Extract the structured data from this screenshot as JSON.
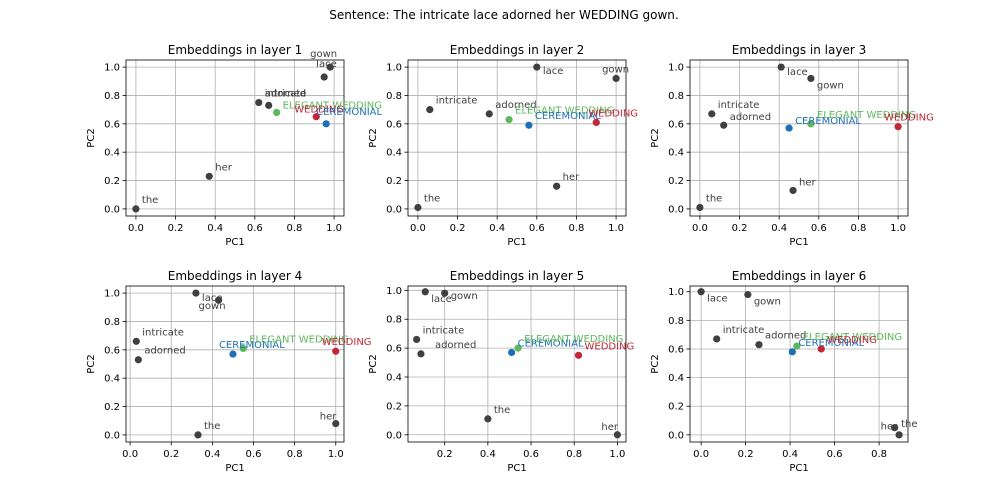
{
  "figure": {
    "title": "Sentence: The intricate lace adorned her WEDDING gown."
  },
  "legend_colors": {
    "word": "#404040",
    "elegant_wedding": "#5cb85c",
    "ceremonial": "#1f6fb5",
    "wedding": "#c0283a"
  },
  "chart_data": [
    {
      "type": "scatter",
      "title": "Embeddings in layer 1",
      "xlabel": "PC1",
      "ylabel": "PC2",
      "xlim": [
        -0.05,
        1.05
      ],
      "ylim": [
        -0.05,
        1.05
      ],
      "xticks": [
        "0.0",
        "0.2",
        "0.4",
        "0.6",
        "0.8",
        "1.0"
      ],
      "yticks": [
        "0.0",
        "0.2",
        "0.4",
        "0.6",
        "0.8",
        "1.0"
      ],
      "grid": true,
      "points": [
        {
          "label": "the",
          "x": 0.0,
          "y": 0.0,
          "color": "#404040"
        },
        {
          "label": "her",
          "x": 0.37,
          "y": 0.23,
          "color": "#404040"
        },
        {
          "label": "intricate",
          "x": 0.62,
          "y": 0.75,
          "color": "#404040"
        },
        {
          "label": "adorned",
          "x": 0.67,
          "y": 0.73,
          "color": "#404040"
        },
        {
          "label": "ELEGANT WEDDING",
          "x": 0.71,
          "y": 0.68,
          "color": "#5cb85c"
        },
        {
          "label": "WEDDING",
          "x": 0.91,
          "y": 0.65,
          "color": "#c0283a"
        },
        {
          "label": "CEREMONIAL",
          "x": 0.96,
          "y": 0.6,
          "color": "#1f6fb5"
        },
        {
          "label": "lace",
          "x": 0.95,
          "y": 0.93,
          "color": "#404040"
        },
        {
          "label": "gown",
          "x": 0.98,
          "y": 1.0,
          "color": "#404040"
        }
      ]
    },
    {
      "type": "scatter",
      "title": "Embeddings in layer 2",
      "xlabel": "PC1",
      "ylabel": "PC2",
      "xlim": [
        -0.05,
        1.05
      ],
      "ylim": [
        -0.05,
        1.05
      ],
      "xticks": [
        "0.0",
        "0.2",
        "0.4",
        "0.6",
        "0.8",
        "1.0"
      ],
      "yticks": [
        "0.0",
        "0.2",
        "0.4",
        "0.6",
        "0.8",
        "1.0"
      ],
      "grid": true,
      "points": [
        {
          "label": "the",
          "x": 0.0,
          "y": 0.01,
          "color": "#404040"
        },
        {
          "label": "intricate",
          "x": 0.06,
          "y": 0.7,
          "color": "#404040"
        },
        {
          "label": "adorned",
          "x": 0.36,
          "y": 0.67,
          "color": "#404040"
        },
        {
          "label": "ELEGANT WEDDING",
          "x": 0.46,
          "y": 0.63,
          "color": "#5cb85c"
        },
        {
          "label": "CEREMONIAL",
          "x": 0.56,
          "y": 0.59,
          "color": "#1f6fb5"
        },
        {
          "label": "WEDDING",
          "x": 0.9,
          "y": 0.61,
          "color": "#c0283a"
        },
        {
          "label": "lace",
          "x": 0.6,
          "y": 1.0,
          "color": "#404040"
        },
        {
          "label": "gown",
          "x": 1.0,
          "y": 0.92,
          "color": "#404040"
        },
        {
          "label": "her",
          "x": 0.7,
          "y": 0.16,
          "color": "#404040"
        }
      ]
    },
    {
      "type": "scatter",
      "title": "Embeddings in layer 3",
      "xlabel": "PC1",
      "ylabel": "PC2",
      "xlim": [
        -0.05,
        1.05
      ],
      "ylim": [
        -0.05,
        1.05
      ],
      "xticks": [
        "0.0",
        "0.2",
        "0.4",
        "0.6",
        "0.8",
        "1.0"
      ],
      "yticks": [
        "0.0",
        "0.2",
        "0.4",
        "0.6",
        "0.8",
        "1.0"
      ],
      "grid": true,
      "points": [
        {
          "label": "the",
          "x": 0.0,
          "y": 0.01,
          "color": "#404040"
        },
        {
          "label": "intricate",
          "x": 0.06,
          "y": 0.67,
          "color": "#404040"
        },
        {
          "label": "adorned",
          "x": 0.12,
          "y": 0.59,
          "color": "#404040"
        },
        {
          "label": "lace",
          "x": 0.41,
          "y": 1.0,
          "color": "#404040"
        },
        {
          "label": "gown",
          "x": 0.56,
          "y": 0.92,
          "color": "#404040"
        },
        {
          "label": "CEREMONIAL",
          "x": 0.45,
          "y": 0.57,
          "color": "#1f6fb5"
        },
        {
          "label": "ELEGANT WEDDING",
          "x": 0.56,
          "y": 0.6,
          "color": "#5cb85c"
        },
        {
          "label": "WEDDING",
          "x": 1.0,
          "y": 0.58,
          "color": "#c0283a"
        },
        {
          "label": "her",
          "x": 0.47,
          "y": 0.13,
          "color": "#404040"
        }
      ]
    },
    {
      "type": "scatter",
      "title": "Embeddings in layer 4",
      "xlabel": "PC1",
      "ylabel": "PC2",
      "xlim": [
        -0.02,
        1.04
      ],
      "ylim": [
        -0.05,
        1.05
      ],
      "xticks": [
        "0.0",
        "0.2",
        "0.4",
        "0.6",
        "0.8",
        "1.0"
      ],
      "yticks": [
        "0.0",
        "0.2",
        "0.4",
        "0.6",
        "0.8",
        "1.0"
      ],
      "grid": true,
      "points": [
        {
          "label": "intricate",
          "x": 0.03,
          "y": 0.66,
          "color": "#404040"
        },
        {
          "label": "adorned",
          "x": 0.04,
          "y": 0.53,
          "color": "#404040"
        },
        {
          "label": "lace",
          "x": 0.32,
          "y": 1.0,
          "color": "#404040"
        },
        {
          "label": "gown",
          "x": 0.43,
          "y": 0.95,
          "color": "#404040"
        },
        {
          "label": "CEREMONIAL",
          "x": 0.5,
          "y": 0.57,
          "color": "#1f6fb5"
        },
        {
          "label": "ELEGANT WEDDING",
          "x": 0.55,
          "y": 0.61,
          "color": "#5cb85c"
        },
        {
          "label": "WEDDING",
          "x": 1.0,
          "y": 0.59,
          "color": "#c0283a"
        },
        {
          "label": "the",
          "x": 0.33,
          "y": 0.0,
          "color": "#404040"
        },
        {
          "label": "her",
          "x": 1.0,
          "y": 0.08,
          "color": "#404040"
        }
      ]
    },
    {
      "type": "scatter",
      "title": "Embeddings in layer 5",
      "xlabel": "PC1",
      "ylabel": "PC2",
      "xlim": [
        0.03,
        1.04
      ],
      "ylim": [
        -0.05,
        1.03
      ],
      "xticks": [
        "0.2",
        "0.4",
        "0.6",
        "0.8",
        "1.0"
      ],
      "yticks": [
        "0.0",
        "0.2",
        "0.4",
        "0.6",
        "0.8",
        "1.0"
      ],
      "grid": true,
      "points": [
        {
          "label": "intricate",
          "x": 0.07,
          "y": 0.66,
          "color": "#404040"
        },
        {
          "label": "adorned",
          "x": 0.09,
          "y": 0.56,
          "color": "#404040"
        },
        {
          "label": "lace",
          "x": 0.11,
          "y": 0.99,
          "color": "#404040"
        },
        {
          "label": "gown",
          "x": 0.2,
          "y": 0.98,
          "color": "#404040"
        },
        {
          "label": "the",
          "x": 0.4,
          "y": 0.11,
          "color": "#404040"
        },
        {
          "label": "CEREMONIAL",
          "x": 0.51,
          "y": 0.57,
          "color": "#1f6fb5"
        },
        {
          "label": "ELEGANT WEDDING",
          "x": 0.54,
          "y": 0.6,
          "color": "#5cb85c"
        },
        {
          "label": "WEDDING",
          "x": 0.82,
          "y": 0.55,
          "color": "#c0283a"
        },
        {
          "label": "her",
          "x": 1.0,
          "y": 0.0,
          "color": "#404040"
        }
      ]
    },
    {
      "type": "scatter",
      "title": "Embeddings in layer 6",
      "xlabel": "PC1",
      "ylabel": "PC2",
      "xlim": [
        -0.05,
        0.93
      ],
      "ylim": [
        -0.05,
        1.04
      ],
      "xticks": [
        "0.0",
        "0.2",
        "0.4",
        "0.6",
        "0.8"
      ],
      "yticks": [
        "0.0",
        "0.2",
        "0.4",
        "0.6",
        "0.8",
        "1.0"
      ],
      "grid": true,
      "points": [
        {
          "label": "lace",
          "x": 0.0,
          "y": 1.0,
          "color": "#404040"
        },
        {
          "label": "gown",
          "x": 0.21,
          "y": 0.98,
          "color": "#404040"
        },
        {
          "label": "intricate",
          "x": 0.07,
          "y": 0.67,
          "color": "#404040"
        },
        {
          "label": "adorned",
          "x": 0.26,
          "y": 0.63,
          "color": "#404040"
        },
        {
          "label": "CEREMONIAL",
          "x": 0.41,
          "y": 0.58,
          "color": "#1f6fb5"
        },
        {
          "label": "ELEGANT WEDDING",
          "x": 0.43,
          "y": 0.62,
          "color": "#5cb85c"
        },
        {
          "label": "WEDDING",
          "x": 0.54,
          "y": 0.6,
          "color": "#c0283a"
        },
        {
          "label": "her",
          "x": 0.87,
          "y": 0.05,
          "color": "#404040"
        },
        {
          "label": "the",
          "x": 0.89,
          "y": 0.0,
          "color": "#404040"
        }
      ]
    }
  ]
}
